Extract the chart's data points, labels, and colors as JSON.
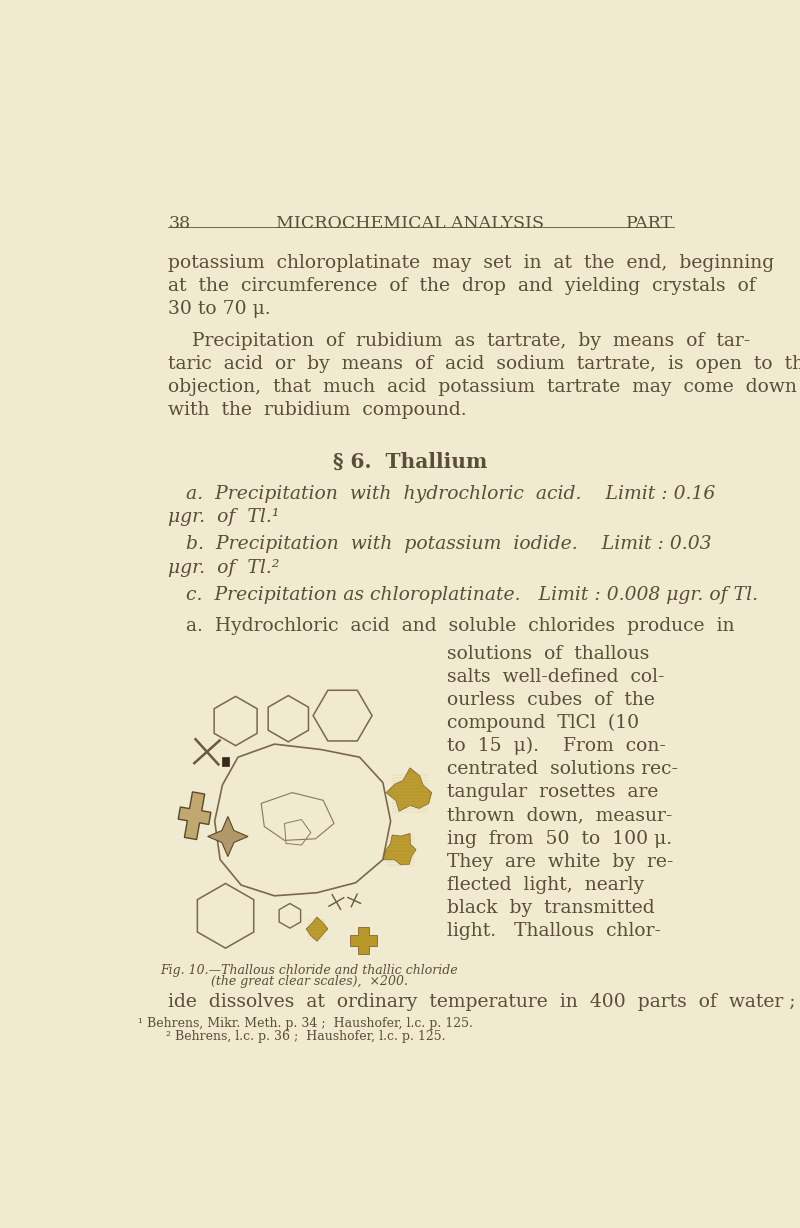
{
  "bg_color": "#f0ead0",
  "text_color": "#5a4e38",
  "header_num": "38",
  "header_title": "MICROCHEMICAL ANALYSIS",
  "header_right": "PART",
  "para1_lines": [
    "potassium  chloroplatinate  may  set  in  at  the  end,  beginning",
    "at  the  circumference  of  the  drop  and  yielding  crystals  of",
    "30 to 70 μ."
  ],
  "para2_lines": [
    "    Precipitation  of  rubidium  as  tartrate,  by  means  of  tar-",
    "taric  acid  or  by  means  of  acid  sodium  tartrate,  is  open  to  the",
    "objection,  that  much  acid  potassium  tartrate  may  come  down",
    "with  the  rubidium  compound."
  ],
  "section_header": "§ 6.  Thallium",
  "item_a_line1": "   a.  Precipitation  with  hydrochloric  acid.    Limit : 0.16",
  "item_a_line2": "μgr.  of  Tl.¹",
  "item_b_line1": "   b.  Precipitation  with  potassium  iodide.    Limit : 0.03",
  "item_b_line2": "μgr.  of  Tl.²",
  "item_c_line1": "   c.  Precipitation as chloroplatinate.   Limit : 0.008 μgr. of Tl.",
  "item_a2_line1": "   a.  Hydrochloric  acid  and  soluble  chlorides  produce  in",
  "right_col_lines": [
    "solutions  of  thallous",
    "salts  well-defined  col-",
    "ourless  cubes  of  the",
    "compound  TlCl  (10",
    "to  15  μ).    From  con-",
    "centrated  solutions rec-",
    "tangular  rosettes  are",
    "thrown  down,  measur-",
    "ing  from  50  to  100 μ.",
    "They  are  white  by  re-",
    "flected  light,  nearly",
    "black  by  transmitted",
    "light.   Thallous  chlor-"
  ],
  "bottom_line": "ide  dissolves  at  ordinary  temperature  in  400  parts  of  water ;",
  "fig_caption_1": "Fig. 10.—Thallous chloride and thallic chloride",
  "fig_caption_2": "(the great clear scales),  ×200.",
  "footnote1": "¹ Behrens, Mikr. Meth. p. 34 ;  Haushofer, l.c. p. 125.",
  "footnote2": "² Behrens, l.c. p. 36 ;  Haushofer, l.c. p. 125.",
  "text_size": 13.5,
  "header_size": 12.5,
  "section_size": 14.5
}
